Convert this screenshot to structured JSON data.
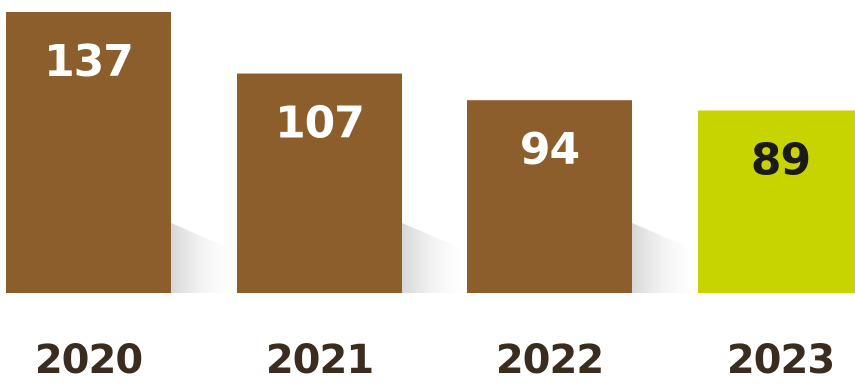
{
  "chart_data": {
    "type": "bar",
    "categories": [
      "2020",
      "2021",
      "2022",
      "2023"
    ],
    "values": [
      137,
      107,
      94,
      89
    ],
    "value_labels": [
      "137",
      "107",
      "94",
      "89"
    ],
    "title": "",
    "xlabel": "",
    "ylabel": "",
    "ylim": [
      0,
      137
    ],
    "grid": false,
    "legend": "none",
    "colors": {
      "default_bar": "#8b5e2b",
      "highlight_bar": "#c8d400",
      "default_value_text": "#ffffff",
      "highlight_value_text": "#1a1a1a",
      "tick_text": "#3a2d1f",
      "shadow": "#d9d9d9"
    },
    "highlight_index": 3
  }
}
